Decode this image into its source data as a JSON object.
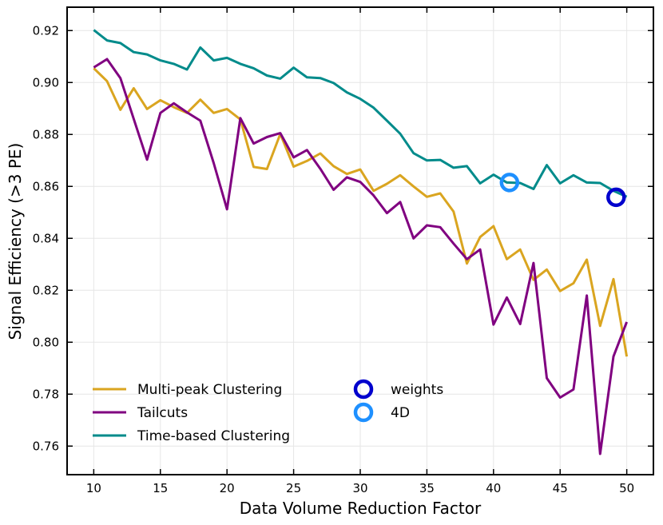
{
  "chart_data": {
    "type": "line",
    "xlabel": "Data Volume Reduction Factor",
    "ylabel": "Signal Efficiency (>3 PE)",
    "xlim": [
      8,
      52
    ],
    "ylim": [
      0.749,
      0.929
    ],
    "xticks": [
      10,
      15,
      20,
      25,
      30,
      35,
      40,
      45,
      50
    ],
    "yticks": [
      0.76,
      0.78,
      0.8,
      0.82,
      0.84,
      0.86,
      0.88,
      0.9,
      0.92
    ],
    "grid": true,
    "legend_position": "bottom-left",
    "x": [
      10,
      11,
      12,
      13,
      14,
      15,
      16,
      17,
      18,
      19,
      20,
      21,
      22,
      23,
      24,
      25,
      26,
      27,
      28,
      29,
      30,
      31,
      32,
      33,
      34,
      35,
      36,
      37,
      38,
      39,
      40,
      41,
      42,
      43,
      44,
      45,
      46,
      47,
      48,
      49,
      50
    ],
    "series": [
      {
        "name": "Multi-peak Clustering",
        "color": "#DAA520",
        "values": [
          0.9055,
          0.9005,
          0.8895,
          0.8978,
          0.8898,
          0.8932,
          0.8905,
          0.8883,
          0.8934,
          0.8883,
          0.8898,
          0.8858,
          0.8675,
          0.8667,
          0.8802,
          0.8676,
          0.8698,
          0.8727,
          0.8678,
          0.8648,
          0.8665,
          0.8583,
          0.861,
          0.8643,
          0.86,
          0.856,
          0.8573,
          0.8503,
          0.8303,
          0.8405,
          0.8447,
          0.832,
          0.8357,
          0.824,
          0.828,
          0.8197,
          0.8227,
          0.8318,
          0.8063,
          0.8243,
          0.7945
        ]
      },
      {
        "name": "Tailcuts",
        "color": "#800080",
        "values": [
          0.9058,
          0.909,
          0.9017,
          0.886,
          0.8703,
          0.8883,
          0.892,
          0.8885,
          0.8853,
          0.869,
          0.8512,
          0.8863,
          0.8765,
          0.879,
          0.8805,
          0.8712,
          0.874,
          0.8668,
          0.8587,
          0.8635,
          0.8617,
          0.8565,
          0.8497,
          0.854,
          0.84,
          0.845,
          0.8443,
          0.838,
          0.832,
          0.8357,
          0.8068,
          0.8172,
          0.807,
          0.8305,
          0.7862,
          0.7787,
          0.7818,
          0.818,
          0.757,
          0.7945,
          0.8078
        ]
      },
      {
        "name": "Time-based Clustering",
        "color": "#008B8B",
        "values": [
          0.9202,
          0.9162,
          0.9152,
          0.9117,
          0.9108,
          0.9085,
          0.9072,
          0.905,
          0.9135,
          0.9085,
          0.9095,
          0.9072,
          0.9055,
          0.9027,
          0.9015,
          0.9057,
          0.902,
          0.9017,
          0.8998,
          0.8962,
          0.8937,
          0.8903,
          0.8853,
          0.8803,
          0.8728,
          0.87,
          0.8702,
          0.8672,
          0.8678,
          0.8612,
          0.8645,
          0.8615,
          0.8613,
          0.859,
          0.8682,
          0.8612,
          0.8643,
          0.8615,
          0.8613,
          0.8583,
          0.856
        ]
      }
    ],
    "markers": [
      {
        "name": "weights",
        "color": "#0000CD",
        "x": 49.2,
        "y": 0.8558
      },
      {
        "name": "4D",
        "color": "#1E90FF",
        "x": 41.2,
        "y": 0.8615
      }
    ]
  }
}
